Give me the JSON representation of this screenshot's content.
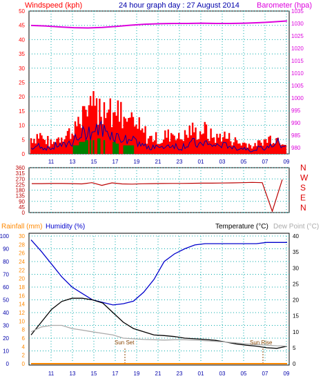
{
  "header": {
    "windspeed_label": "Windspeed (kph)",
    "graph_title": "24 hour graph day : 27 August 2014",
    "barometer_label": "Barometer (hpa)"
  },
  "lower_header": {
    "rainfall_label": "Rainfall (mm)",
    "humidity_label": "Humidity (%)",
    "temperature_label": "Temperature (°C)",
    "dewpoint_label": "Dew Point (°C)"
  },
  "annotations": {
    "sunset": "Sun Set",
    "sunrise": "Sun Rise"
  },
  "colors": {
    "windspeed": "#ff0000",
    "gust": "#0000aa",
    "wind_fill": "#008000",
    "barometer": "#dd00dd",
    "direction": "#bb0000",
    "compass": "#dd0000",
    "humidity": "#0000cc",
    "temperature": "#000000",
    "dewpoint": "#aaaaaa",
    "rain": "#ff8800",
    "grid": "#00aaaa",
    "axis_blue": "#0000aa"
  },
  "chart_data": [
    {
      "type": "line",
      "title": "24 hour graph day : 27 August 2014",
      "x_ticks": [
        "11",
        "13",
        "15",
        "17",
        "19",
        "21",
        "23",
        "01",
        "03",
        "05",
        "07",
        "09"
      ],
      "left_axis": {
        "label": "Windspeed (kph)",
        "ticks": [
          0,
          5,
          10,
          15,
          20,
          25,
          30,
          35,
          40,
          45,
          50
        ],
        "range": [
          0,
          50
        ]
      },
      "right_axis": {
        "label": "Barometer (hpa)",
        "ticks": [
          980,
          985,
          990,
          995,
          1000,
          1005,
          1010,
          1015,
          1020,
          1025,
          1030,
          1035
        ],
        "range": [
          977.5,
          1035
        ]
      },
      "series": [
        {
          "name": "Windspeed (kph)",
          "values": [
            6,
            7,
            5,
            4,
            6,
            7,
            8,
            11,
            14,
            16,
            17,
            18,
            19,
            17,
            15,
            13,
            12,
            10,
            8,
            6,
            6,
            5,
            7,
            8,
            6,
            7,
            9,
            8,
            9,
            7,
            6,
            7,
            6,
            5,
            4,
            4,
            3,
            4,
            5,
            6,
            6,
            5
          ]
        },
        {
          "name": "Gust",
          "values": [
            2,
            3,
            2,
            2,
            3,
            3,
            4,
            5,
            7,
            8,
            8,
            9,
            8,
            7,
            6,
            5,
            5,
            4,
            3,
            2,
            3,
            2,
            3,
            3,
            2,
            3,
            4,
            3,
            4,
            3,
            3,
            3,
            3,
            2,
            2,
            2,
            1,
            2,
            2,
            3,
            4,
            3
          ]
        },
        {
          "name": "Barometer (hpa)",
          "values": [
            1029.2,
            1029.0,
            1028.6,
            1028.3,
            1028.2,
            1028.4,
            1028.8,
            1029.3,
            1029.7,
            1029.9,
            1030.0,
            1030.0,
            1030.1,
            1030.0,
            1030.0,
            1030.1,
            1030.3,
            1030.6,
            1031.0
          ]
        }
      ]
    },
    {
      "type": "line",
      "title": "",
      "x_ticks": [
        "11",
        "13",
        "15",
        "17",
        "19",
        "21",
        "23",
        "01",
        "03",
        "05",
        "07",
        "09"
      ],
      "left_axis": {
        "ticks": [
          0,
          45,
          90,
          135,
          180,
          225,
          270,
          315,
          360
        ],
        "range": [
          0,
          360
        ]
      },
      "compass": [
        "N",
        "W",
        "S",
        "E",
        "N"
      ],
      "series": [
        {
          "name": "Wind Direction",
          "values": [
            232,
            232,
            233,
            233,
            232,
            230,
            240,
            218,
            238,
            230,
            228,
            231,
            232,
            233,
            234,
            234,
            235,
            236,
            236,
            237,
            238,
            240,
            242,
            240,
            10,
            265
          ]
        }
      ]
    },
    {
      "type": "line",
      "title": "",
      "x_ticks": [
        "11",
        "13",
        "15",
        "17",
        "19",
        "21",
        "23",
        "01",
        "03",
        "05",
        "07",
        "09"
      ],
      "humidity_axis": {
        "label": "Humidity (%)",
        "ticks": [
          0,
          10,
          20,
          30,
          40,
          50,
          60,
          70,
          80,
          90,
          100
        ],
        "range": [
          0,
          100
        ]
      },
      "rain_axis": {
        "label": "Rainfall (mm)",
        "ticks": [
          0,
          2,
          4,
          6,
          8,
          10,
          12,
          14,
          16,
          18,
          20,
          22,
          24,
          26,
          28,
          30
        ],
        "range": [
          0,
          30
        ]
      },
      "temperature_axis": {
        "label": "Temperature (°C)",
        "ticks": [
          0,
          5,
          10,
          15,
          20,
          25,
          30,
          35,
          40
        ],
        "range": [
          0,
          40
        ]
      },
      "series": [
        {
          "name": "Humidity (%)",
          "values": [
            97,
            88,
            78,
            68,
            60,
            55,
            50,
            48,
            46,
            47,
            49,
            56,
            66,
            80,
            86,
            90,
            93,
            94,
            94,
            94,
            94,
            94,
            94,
            95,
            95,
            95
          ]
        },
        {
          "name": "Temperature (°C)",
          "values": [
            9,
            13,
            17,
            19.5,
            20.5,
            20.5,
            20,
            19,
            16,
            13,
            11,
            10,
            9,
            8.8,
            8.5,
            8,
            7.8,
            7.6,
            7.3,
            6.8,
            6.2,
            5.8,
            5.5,
            5.0,
            4.8,
            5.5
          ]
        },
        {
          "name": "Dew Point (°C)",
          "values": [
            10,
            11.5,
            12,
            12,
            11,
            10.5,
            10,
            9.5,
            9,
            8,
            7.8,
            7.6,
            7.5,
            7.4,
            7.5,
            7.5,
            7.4,
            7.2,
            7,
            6.8,
            6.5,
            6.2,
            6,
            5.8,
            5.6,
            5.5
          ]
        },
        {
          "name": "Rainfall (mm)",
          "values": [
            0,
            0,
            0,
            0,
            0,
            0,
            0,
            0,
            0,
            0,
            0,
            0,
            0,
            0,
            0,
            0,
            0,
            0,
            0,
            0,
            0,
            0,
            0,
            0,
            0,
            0
          ]
        }
      ]
    }
  ]
}
